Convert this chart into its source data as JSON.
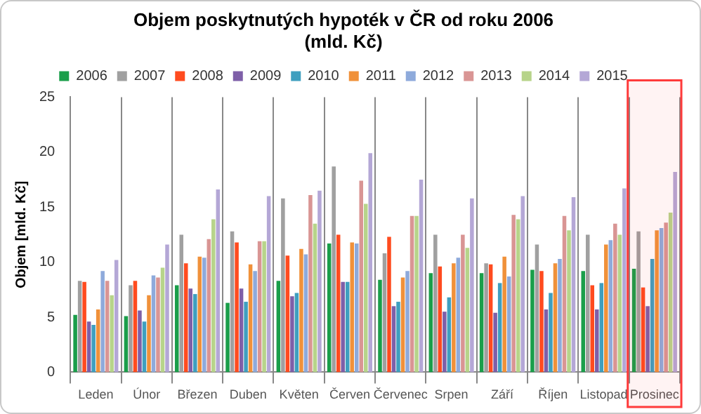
{
  "chart_data": {
    "type": "bar",
    "title": "Objem poskytnutých hypoték v ČR od roku 2006\n(mld. Kč)",
    "ylabel": "Objem [mld. Kč]",
    "categories": [
      "Leden",
      "Únor",
      "Březen",
      "Duben",
      "Květen",
      "Červen",
      "Červenec",
      "Srpen",
      "Září",
      "Říjen",
      "Listopad",
      "Prosinec"
    ],
    "series": [
      {
        "name": "2006",
        "color": "#1a9e4a",
        "values": [
          5.2,
          5.1,
          7.9,
          6.3,
          8.3,
          11.7,
          8.4,
          9.0,
          9.0,
          9.3,
          9.2,
          9.4
        ]
      },
      {
        "name": "2007",
        "color": "#a0a0a0",
        "values": [
          8.3,
          7.9,
          12.5,
          12.8,
          15.8,
          18.7,
          10.8,
          12.5,
          9.9,
          11.6,
          12.5,
          12.8
        ]
      },
      {
        "name": "2008",
        "color": "#ff4b1f",
        "values": [
          8.2,
          8.3,
          9.9,
          11.8,
          10.6,
          12.5,
          12.3,
          9.6,
          9.8,
          9.2,
          7.9,
          7.7
        ]
      },
      {
        "name": "2009",
        "color": "#7e5fa8",
        "values": [
          4.6,
          5.6,
          7.6,
          7.6,
          6.9,
          8.2,
          6.0,
          5.5,
          5.4,
          5.7,
          5.7,
          6.0
        ]
      },
      {
        "name": "2010",
        "color": "#3f9fbf",
        "values": [
          4.3,
          4.6,
          7.1,
          6.4,
          7.2,
          8.2,
          6.4,
          6.8,
          8.1,
          7.2,
          8.1,
          10.3
        ]
      },
      {
        "name": "2011",
        "color": "#f0913a",
        "values": [
          5.7,
          7.0,
          10.5,
          9.8,
          11.2,
          11.8,
          8.6,
          9.9,
          10.5,
          9.9,
          11.6,
          12.9
        ]
      },
      {
        "name": "2012",
        "color": "#8eaadb",
        "values": [
          9.2,
          8.8,
          10.4,
          9.2,
          10.7,
          11.7,
          9.2,
          10.4,
          8.7,
          10.3,
          12.0,
          13.1
        ]
      },
      {
        "name": "2013",
        "color": "#d99594",
        "values": [
          8.3,
          8.6,
          12.1,
          11.9,
          16.1,
          17.4,
          14.2,
          12.5,
          14.3,
          14.2,
          13.5,
          13.6
        ]
      },
      {
        "name": "2014",
        "color": "#b7d48a",
        "values": [
          7.0,
          9.5,
          13.9,
          11.9,
          13.5,
          15.3,
          14.2,
          11.3,
          13.9,
          12.9,
          12.5,
          14.5
        ]
      },
      {
        "name": "2015",
        "color": "#b4a7d6",
        "values": [
          10.2,
          11.6,
          16.6,
          16.0,
          16.5,
          19.9,
          17.5,
          15.8,
          16.0,
          15.9,
          16.7,
          18.2
        ]
      }
    ],
    "ylim": [
      0,
      25
    ],
    "yticks": [
      0,
      5,
      10,
      15,
      20,
      25
    ],
    "grid": "x",
    "legend": "top",
    "bands": [
      {
        "axis": "x",
        "from": "Prosinec",
        "to": "Prosinec",
        "color": "#ff3b3b"
      }
    ]
  }
}
